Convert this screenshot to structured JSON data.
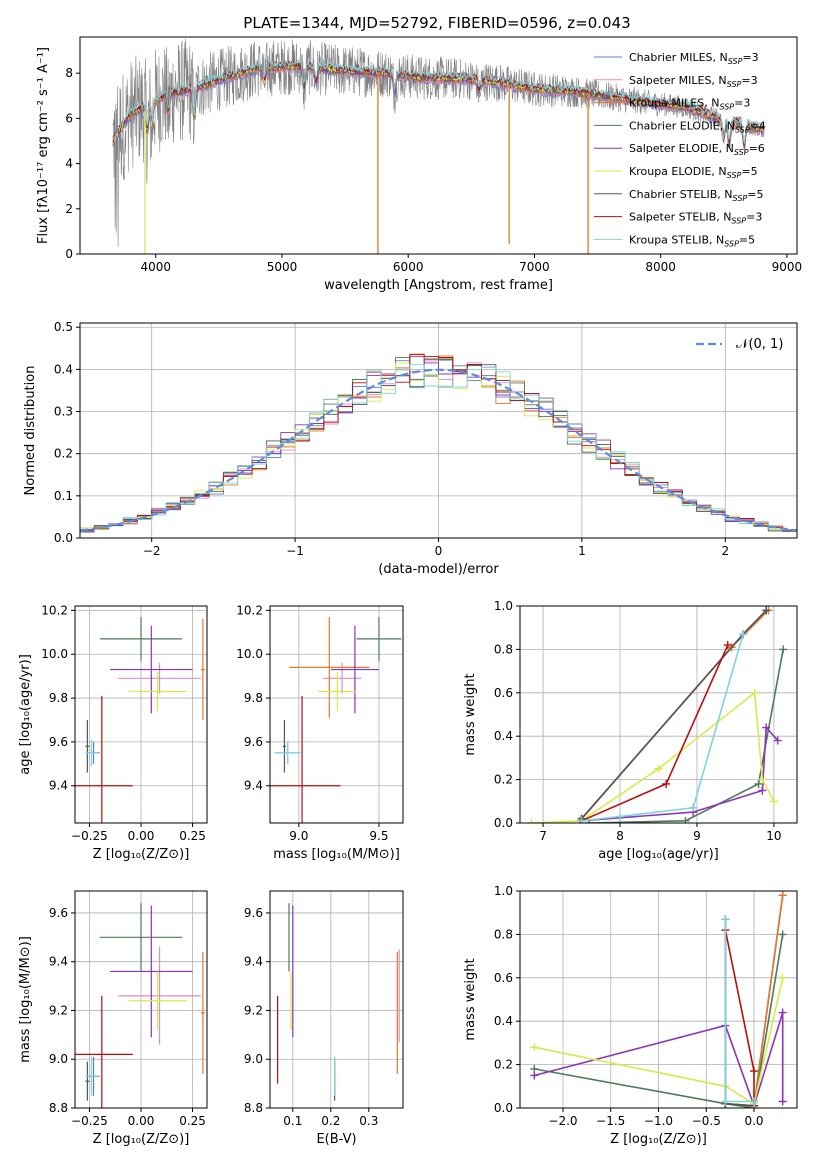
{
  "figure_title": "PLATE=1344, MJD=52792, FIBERID=0596, z=0.043",
  "colors": {
    "Chabrier MILES": "#5b7fd6",
    "Salpeter MILES": "#e58ac6",
    "Kroupa MILES": "#e0792a",
    "Chabrier ELODIE": "#4f7a57",
    "Salpeter ELODIE": "#8e33b8",
    "Kroupa ELODIE": "#d4ec4a",
    "Chabrier STELIB": "#555555",
    "Salpeter STELIB": "#b80e0e",
    "Kroupa STELIB": "#7fd3dc",
    "data": "#808080",
    "normal": "#5b8ee0"
  },
  "chart_data": [
    {
      "id": "spectrum",
      "type": "line",
      "xlabel": "wavelength [Angstrom, rest frame]",
      "ylabel": "Flux [fλ10⁻¹⁷ erg cm⁻² s⁻¹ A⁻¹]",
      "xlim": [
        3400,
        9080
      ],
      "ylim": [
        0,
        9.6
      ],
      "xticks": [
        4000,
        5000,
        6000,
        7000,
        8000,
        9000
      ],
      "yticks": [
        0,
        2,
        4,
        6,
        8
      ],
      "legend_position": "upper right",
      "legend": [
        {
          "label": "Chabrier MILES, N_SSP=3",
          "text": "Chabrier MILES, N",
          "sub": "SSP",
          "post": "=3",
          "color": "#5b7fd6"
        },
        {
          "label": "Salpeter MILES, N_SSP=3",
          "text": "Salpeter MILES, N",
          "sub": "SSP",
          "post": "=3",
          "color": "#e58ac6"
        },
        {
          "label": "Kroupa MILES, N_SSP=3",
          "text": "Kroupa MILES, N",
          "sub": "SSP",
          "post": "=3",
          "color": "#e0792a"
        },
        {
          "label": "Chabrier ELODIE, N_SSP=4",
          "text": "Chabrier ELODIE, N",
          "sub": "SSP",
          "post": "=4",
          "color": "#4f7a57"
        },
        {
          "label": "Salpeter ELODIE, N_SSP=6",
          "text": "Salpeter ELODIE, N",
          "sub": "SSP",
          "post": "=6",
          "color": "#8e33b8"
        },
        {
          "label": "Kroupa ELODIE, N_SSP=5",
          "text": "Kroupa ELODIE, N",
          "sub": "SSP",
          "post": "=5",
          "color": "#d4ec4a"
        },
        {
          "label": "Chabrier STELIB, N_SSP=5",
          "text": "Chabrier STELIB, N",
          "sub": "SSP",
          "post": "=5",
          "color": "#555555"
        },
        {
          "label": "Salpeter STELIB, N_SSP=3",
          "text": "Salpeter STELIB, N",
          "sub": "SSP",
          "post": "=3",
          "color": "#b80e0e"
        },
        {
          "label": "Kroupa STELIB, N_SSP=5",
          "text": "Kroupa STELIB, N",
          "sub": "SSP",
          "post": "=5",
          "color": "#7fd3dc"
        }
      ],
      "continuum_x": [
        3650,
        3800,
        3950,
        4100,
        4300,
        4500,
        4800,
        5100,
        5500,
        5800,
        6100,
        6400,
        6700,
        7000,
        7300,
        7600,
        7900,
        8200,
        8500,
        8800
      ],
      "continuum_y": [
        4.9,
        6.2,
        6.6,
        7.1,
        7.3,
        7.7,
        8.2,
        8.3,
        8.1,
        8.0,
        7.8,
        7.75,
        7.6,
        7.3,
        7.2,
        6.95,
        6.7,
        6.5,
        5.9,
        5.5
      ],
      "absorption_lines": [
        {
          "x": 3934,
          "depth": 1.1
        },
        {
          "x": 3969,
          "depth": 1.0
        },
        {
          "x": 4102,
          "depth": 0.8
        },
        {
          "x": 4304,
          "depth": 1.2
        },
        {
          "x": 4861,
          "depth": 0.6
        },
        {
          "x": 5175,
          "depth": 0.9
        },
        {
          "x": 5270,
          "depth": 0.6
        },
        {
          "x": 5893,
          "depth": 0.7
        },
        {
          "x": 6563,
          "depth": 0.5
        },
        {
          "x": 8498,
          "depth": 0.8
        },
        {
          "x": 8542,
          "depth": 1.0
        },
        {
          "x": 8662,
          "depth": 0.9
        }
      ],
      "model_spikes": [
        {
          "x": 3915,
          "y_min": 0.0,
          "color": "#d4ec4a"
        },
        {
          "x": 5760,
          "y_min": 0.0,
          "color": "#e0792a"
        },
        {
          "x": 6800,
          "y_min": 0.45,
          "color": "#e0792a"
        },
        {
          "x": 7425,
          "y_min": 0.0,
          "color": "#e0792a"
        }
      ],
      "data_wave_min": 3660,
      "data_wave_max": 8820,
      "data_noise_blue": 1.6,
      "data_noise_red": 0.35
    },
    {
      "id": "residuals",
      "type": "line",
      "xlabel": "(data-model)/error",
      "ylabel": "Normed distribution",
      "xlim": [
        -2.5,
        2.5
      ],
      "ylim": [
        0,
        0.51
      ],
      "xticks": [
        -2,
        -1,
        0,
        1,
        2
      ],
      "yticks": [
        0.0,
        0.1,
        0.2,
        0.3,
        0.4,
        0.5
      ],
      "grid": true,
      "legend_position": "upper right",
      "legend_label": "𝒩(0, 1)",
      "bin_width": 0.1,
      "gaussian": {
        "mean": 0,
        "sigma": 1
      }
    },
    {
      "id": "Z-age",
      "type": "scatter",
      "xlabel": "Z [log₁₀(Z/Z⊙)]",
      "ylabel": "age  [log₁₀(age/yr)]",
      "xlim": [
        -0.32,
        0.32
      ],
      "ylim": [
        9.23,
        10.22
      ],
      "xticks": [
        -0.25,
        0.0,
        0.25
      ],
      "yticks": [
        9.4,
        9.6,
        9.8,
        10.0,
        10.2
      ],
      "grid": true,
      "points": [
        {
          "model": "Chabrier MILES",
          "x": -0.23,
          "y": 9.55,
          "xerr": 0.03,
          "yerr": 0.05,
          "color": "#5b7fd6"
        },
        {
          "model": "Salpeter MILES",
          "x": 0.09,
          "y": 9.89,
          "xerr": 0.2,
          "yerr": 0.07,
          "color": "#e58ac6"
        },
        {
          "model": "Kroupa MILES",
          "x": 0.3,
          "y": 9.93,
          "xerr": 0.01,
          "yerr": 0.23,
          "color": "#e0792a"
        },
        {
          "model": "Chabrier ELODIE",
          "x": 0.0,
          "y": 10.07,
          "xerr": 0.2,
          "yerr": 0.1,
          "color": "#4f7a57"
        },
        {
          "model": "Salpeter ELODIE",
          "x": 0.05,
          "y": 9.93,
          "xerr": 0.2,
          "yerr": 0.2,
          "color": "#8e33b8"
        },
        {
          "model": "Kroupa ELODIE",
          "x": 0.08,
          "y": 9.83,
          "xerr": 0.14,
          "yerr": 0.09,
          "color": "#d4ec4a"
        },
        {
          "model": "Chabrier STELIB",
          "x": -0.26,
          "y": 9.58,
          "xerr": 0.01,
          "yerr": 0.12,
          "color": "#555555"
        },
        {
          "model": "Salpeter STELIB",
          "x": -0.19,
          "y": 9.4,
          "xerr": 0.15,
          "yerr": 0.41,
          "color": "#b80e0e"
        },
        {
          "model": "Kroupa STELIB",
          "x": -0.24,
          "y": 9.55,
          "xerr": 0.03,
          "yerr": 0.06,
          "color": "#7fd3dc"
        }
      ]
    },
    {
      "id": "mass-age",
      "type": "scatter",
      "xlabel": "mass [log₁₀(M/M⊙)]",
      "ylabel": "",
      "xlim": [
        8.82,
        9.65
      ],
      "ylim": [
        9.23,
        10.22
      ],
      "xticks": [
        9.0,
        9.5
      ],
      "yticks": [
        9.4,
        9.6,
        9.8,
        10.0,
        10.2
      ],
      "grid": true,
      "points": [
        {
          "model": "Chabrier MILES",
          "x": 8.93,
          "y": 9.55,
          "xerr": 0.08,
          "yerr": 0.05,
          "color": "#5b7fd6"
        },
        {
          "model": "Salpeter MILES",
          "x": 9.27,
          "y": 9.89,
          "xerr": 0.12,
          "yerr": 0.07,
          "color": "#e58ac6"
        },
        {
          "model": "Kroupa MILES",
          "x": 9.19,
          "y": 9.94,
          "xerr": 0.25,
          "yerr": 0.23,
          "color": "#e0792a"
        },
        {
          "model": "Chabrier ELODIE",
          "x": 9.5,
          "y": 10.07,
          "xerr": 0.14,
          "yerr": 0.1,
          "color": "#4f7a57"
        },
        {
          "model": "Salpeter ELODIE",
          "x": 9.35,
          "y": 9.93,
          "xerr": 0.15,
          "yerr": 0.2,
          "color": "#8e33b8"
        },
        {
          "model": "Kroupa ELODIE",
          "x": 9.24,
          "y": 9.83,
          "xerr": 0.12,
          "yerr": 0.09,
          "color": "#d4ec4a"
        },
        {
          "model": "Chabrier STELIB",
          "x": 8.91,
          "y": 9.58,
          "xerr": 0.01,
          "yerr": 0.12,
          "color": "#555555"
        },
        {
          "model": "Salpeter STELIB",
          "x": 9.02,
          "y": 9.4,
          "xerr": 0.24,
          "yerr": 0.41,
          "color": "#b80e0e"
        },
        {
          "model": "Kroupa STELIB",
          "x": 8.93,
          "y": 9.55,
          "xerr": 0.08,
          "yerr": 0.05,
          "color": "#7fd3dc"
        }
      ]
    },
    {
      "id": "age-massweight",
      "type": "line",
      "xlabel": "age  [log₁₀(age/yr)]",
      "ylabel": "mass weight",
      "xlim": [
        6.7,
        10.3
      ],
      "ylim": [
        0,
        1.0
      ],
      "xticks": [
        7,
        8,
        9,
        10
      ],
      "yticks": [
        0.0,
        0.2,
        0.4,
        0.6,
        0.8,
        1.0
      ],
      "grid": true,
      "series": [
        {
          "model": "Chabrier MILES",
          "color": "#5b7fd6",
          "x": [
            7.5,
            9.6,
            9.9
          ],
          "y": [
            0.02,
            0.87,
            0.98
          ]
        },
        {
          "model": "Salpeter MILES",
          "color": "#e58ac6",
          "x": [
            7.5,
            9.45,
            9.9
          ],
          "y": [
            0.02,
            0.81,
            0.98
          ]
        },
        {
          "model": "Kroupa MILES",
          "color": "#e0792a",
          "x": [
            7.48,
            9.45,
            9.93
          ],
          "y": [
            0.01,
            0.81,
            0.98
          ]
        },
        {
          "model": "Chabrier ELODIE",
          "color": "#4f7a57",
          "x": [
            7.6,
            8.85,
            9.8,
            10.12
          ],
          "y": [
            0.0,
            0.01,
            0.18,
            0.8
          ]
        },
        {
          "model": "Salpeter ELODIE",
          "color": "#8e33b8",
          "x": [
            7.5,
            8.95,
            9.85,
            9.9,
            10.05
          ],
          "y": [
            0.01,
            0.05,
            0.15,
            0.44,
            0.38
          ]
        },
        {
          "model": "Kroupa ELODIE",
          "color": "#d4ec4a",
          "x": [
            6.85,
            7.5,
            8.5,
            9.75,
            9.85,
            10.0
          ],
          "y": [
            0.0,
            0.01,
            0.25,
            0.6,
            0.2,
            0.1
          ]
        },
        {
          "model": "Chabrier STELIB",
          "color": "#555555",
          "x": [
            7.5,
            9.6,
            9.9
          ],
          "y": [
            0.02,
            0.87,
            0.98
          ]
        },
        {
          "model": "Salpeter STELIB",
          "color": "#b80e0e",
          "x": [
            7.5,
            8.6,
            9.4
          ],
          "y": [
            0.01,
            0.18,
            0.82
          ]
        },
        {
          "model": "Kroupa STELIB",
          "color": "#7fd3dc",
          "x": [
            7.5,
            8.0,
            8.95,
            9.6
          ],
          "y": [
            0.01,
            0.03,
            0.07,
            0.87
          ]
        }
      ]
    },
    {
      "id": "Z-mass",
      "type": "scatter",
      "xlabel": "Z [log₁₀(Z/Z⊙)]",
      "ylabel": "mass [log₁₀(M/M⊙)]",
      "xlim": [
        -0.32,
        0.32
      ],
      "ylim": [
        8.8,
        9.69
      ],
      "xticks": [
        -0.25,
        0.0,
        0.25
      ],
      "yticks": [
        8.8,
        9.0,
        9.2,
        9.4,
        9.6
      ],
      "grid": true,
      "points": [
        {
          "model": "Chabrier MILES",
          "x": -0.23,
          "y": 8.93,
          "xerr": 0.03,
          "yerr": 0.08,
          "color": "#5b7fd6"
        },
        {
          "model": "Salpeter MILES",
          "x": 0.09,
          "y": 9.26,
          "xerr": 0.2,
          "yerr": 0.2,
          "color": "#e58ac6"
        },
        {
          "model": "Kroupa MILES",
          "x": 0.3,
          "y": 9.19,
          "xerr": 0.01,
          "yerr": 0.25,
          "color": "#e0792a"
        },
        {
          "model": "Chabrier ELODIE",
          "x": 0.0,
          "y": 9.5,
          "xerr": 0.2,
          "yerr": 0.14,
          "color": "#4f7a57"
        },
        {
          "model": "Salpeter ELODIE",
          "x": 0.05,
          "y": 9.36,
          "xerr": 0.2,
          "yerr": 0.27,
          "color": "#8e33b8"
        },
        {
          "model": "Kroupa ELODIE",
          "x": 0.08,
          "y": 9.24,
          "xerr": 0.14,
          "yerr": 0.12,
          "color": "#d4ec4a"
        },
        {
          "model": "Chabrier STELIB",
          "x": -0.26,
          "y": 8.91,
          "xerr": 0.01,
          "yerr": 0.08,
          "color": "#555555"
        },
        {
          "model": "Salpeter STELIB",
          "x": -0.19,
          "y": 9.02,
          "xerr": 0.15,
          "yerr": 0.24,
          "color": "#b80e0e"
        },
        {
          "model": "Kroupa STELIB",
          "x": -0.24,
          "y": 8.93,
          "xerr": 0.03,
          "yerr": 0.08,
          "color": "#7fd3dc"
        }
      ]
    },
    {
      "id": "EBV-mass",
      "type": "scatter",
      "xlabel": "E(B-V)",
      "ylabel": "",
      "xlim": [
        0.04,
        0.39
      ],
      "ylim": [
        8.8,
        9.69
      ],
      "xticks": [
        0.1,
        0.2,
        0.3
      ],
      "yticks": [
        8.8,
        9.0,
        9.2,
        9.4,
        9.6
      ],
      "grid": true,
      "points": [
        {
          "model": "Chabrier MILES",
          "x": 0.21,
          "y": 8.93,
          "xerr": 0.0,
          "yerr": 0.08,
          "color": "#5b7fd6"
        },
        {
          "model": "Salpeter MILES",
          "x": 0.38,
          "y": 9.26,
          "xerr": 0.0,
          "yerr": 0.19,
          "color": "#e58ac6"
        },
        {
          "model": "Kroupa MILES",
          "x": 0.375,
          "y": 9.19,
          "xerr": 0.0,
          "yerr": 0.25,
          "color": "#e0792a"
        },
        {
          "model": "Chabrier ELODIE",
          "x": 0.09,
          "y": 9.5,
          "xerr": 0.0,
          "yerr": 0.14,
          "color": "#4f7a57"
        },
        {
          "model": "Salpeter ELODIE",
          "x": 0.1,
          "y": 9.36,
          "xerr": 0.0,
          "yerr": 0.27,
          "color": "#8e33b8"
        },
        {
          "model": "Kroupa ELODIE",
          "x": 0.095,
          "y": 9.24,
          "xerr": 0.0,
          "yerr": 0.12,
          "color": "#d4ec4a"
        },
        {
          "model": "Chabrier STELIB",
          "x": 0.21,
          "y": 8.91,
          "xerr": 0.0,
          "yerr": 0.08,
          "color": "#555555"
        },
        {
          "model": "Salpeter STELIB",
          "x": 0.06,
          "y": 9.08,
          "xerr": 0.0,
          "yerr": 0.18,
          "color": "#b80e0e"
        },
        {
          "model": "Kroupa STELIB",
          "x": 0.21,
          "y": 8.93,
          "xerr": 0.0,
          "yerr": 0.08,
          "color": "#7fd3dc"
        }
      ]
    },
    {
      "id": "Z-massweight",
      "type": "line",
      "xlabel": "Z [log₁₀(Z/Z⊙)]",
      "ylabel": "mass weight",
      "xlim": [
        -2.45,
        0.45
      ],
      "ylim": [
        0,
        1.0
      ],
      "xticks": [
        -2.0,
        -1.5,
        -1.0,
        -0.5,
        0.0
      ],
      "yticks": [
        0.0,
        0.2,
        0.4,
        0.6,
        0.8,
        1.0
      ],
      "grid": true,
      "series": [
        {
          "model": "Chabrier MILES",
          "color": "#5b7fd6",
          "x": [
            -0.3,
            -0.3,
            0.0,
            0.3
          ],
          "y": [
            0.87,
            0.02,
            0.01,
            0.98
          ]
        },
        {
          "model": "Salpeter MILES",
          "color": "#e58ac6",
          "x": [
            -0.3,
            0.0,
            0.3
          ],
          "y": [
            0.02,
            0.01,
            0.98
          ]
        },
        {
          "model": "Kroupa MILES",
          "color": "#e0792a",
          "x": [
            -0.3,
            0.0,
            0.3
          ],
          "y": [
            0.02,
            0.01,
            0.98
          ]
        },
        {
          "model": "Chabrier ELODIE",
          "color": "#4f7a57",
          "x": [
            -2.3,
            -0.3,
            0.0,
            0.3
          ],
          "y": [
            0.18,
            0.02,
            0.0,
            0.8
          ]
        },
        {
          "model": "Salpeter ELODIE",
          "color": "#8e33b8",
          "x": [
            -2.3,
            -0.3,
            0.0,
            0.3,
            0.3
          ],
          "y": [
            0.15,
            0.38,
            0.01,
            0.44,
            0.03
          ]
        },
        {
          "model": "Kroupa ELODIE",
          "color": "#d4ec4a",
          "x": [
            -2.3,
            -0.3,
            0.0,
            0.3
          ],
          "y": [
            0.28,
            0.1,
            0.02,
            0.6
          ]
        },
        {
          "model": "Chabrier STELIB",
          "color": "#555555",
          "x": [
            -0.3,
            -0.3,
            0.0
          ],
          "y": [
            0.87,
            0.02,
            0.01
          ]
        },
        {
          "model": "Salpeter STELIB",
          "color": "#b80e0e",
          "x": [
            -0.3,
            0.0,
            0.0
          ],
          "y": [
            0.82,
            0.17,
            0.01
          ]
        },
        {
          "model": "Kroupa STELIB",
          "color": "#7fd3dc",
          "x": [
            -0.3,
            -0.3,
            0.0,
            0.0
          ],
          "y": [
            0.87,
            0.03,
            0.03,
            0.0
          ]
        }
      ]
    }
  ]
}
